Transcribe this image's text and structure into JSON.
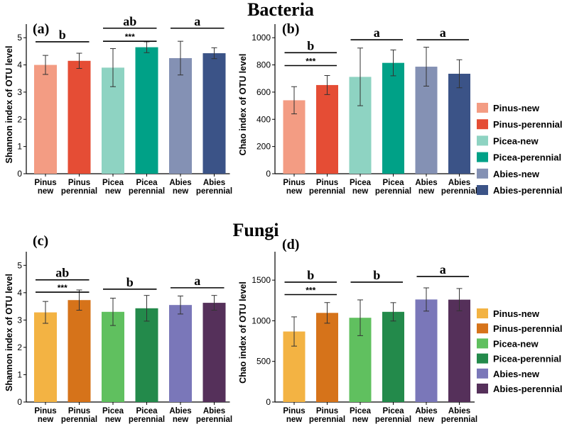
{
  "sections": [
    {
      "title": "Bacteria"
    },
    {
      "title": "Fungi"
    }
  ],
  "legends": [
    {
      "items": [
        {
          "label": "Pinus-new",
          "color": "#F39C83"
        },
        {
          "label": "Pinus-perennial",
          "color": "#E54D35"
        },
        {
          "label": "Picea-new",
          "color": "#8ED3C2"
        },
        {
          "label": "Picea-perennial",
          "color": "#00A187"
        },
        {
          "label": "Abies-new",
          "color": "#8491B4"
        },
        {
          "label": "Abies-perennial",
          "color": "#3B5387"
        }
      ]
    },
    {
      "items": [
        {
          "label": "Pinus-new",
          "color": "#F3B343"
        },
        {
          "label": "Pinus-perennial",
          "color": "#D6731A"
        },
        {
          "label": "Picea-new",
          "color": "#60C05F"
        },
        {
          "label": "Picea-perennial",
          "color": "#238A4B"
        },
        {
          "label": "Abies-new",
          "color": "#7A77B9"
        },
        {
          "label": "Abies-perennial",
          "color": "#55305A"
        }
      ]
    }
  ],
  "chart_data": [
    {
      "panel": "(a)",
      "type": "bar",
      "ylabel": "Shannon index of OTU level",
      "ylim": [
        0,
        5.5
      ],
      "yticks": [
        0,
        1,
        2,
        3,
        4,
        5
      ],
      "categories": [
        [
          "Pinus",
          "new"
        ],
        [
          "Pinus",
          "perennial"
        ],
        [
          "Picea",
          "new"
        ],
        [
          "Picea",
          "perennial"
        ],
        [
          "Abies",
          "new"
        ],
        [
          "Abies",
          "perennial"
        ]
      ],
      "values": [
        4.0,
        4.15,
        3.9,
        4.65,
        4.25,
        4.43
      ],
      "errors": [
        0.35,
        0.28,
        0.7,
        0.2,
        0.62,
        0.2
      ],
      "colors": [
        "#F39C83",
        "#E54D35",
        "#8ED3C2",
        "#00A187",
        "#8491B4",
        "#3B5387"
      ],
      "annotations": [
        {
          "text": "b",
          "bars": [
            0,
            1
          ],
          "y": 4.85
        },
        {
          "text": "ab",
          "bars": [
            2,
            3
          ],
          "y": 5.35
        },
        {
          "text": "a",
          "bars": [
            4,
            5
          ],
          "y": 5.35
        },
        {
          "text": "***",
          "bars": [
            2,
            3
          ],
          "y": 4.87
        }
      ]
    },
    {
      "panel": "(b)",
      "type": "bar",
      "ylabel": "Chao index of OTU level",
      "ylim": [
        0,
        1100
      ],
      "yticks": [
        0,
        200,
        400,
        600,
        800,
        1000
      ],
      "categories": [
        [
          "Pinus",
          "new"
        ],
        [
          "Pinus",
          "perennial"
        ],
        [
          "Picea",
          "new"
        ],
        [
          "Picea",
          "perennial"
        ],
        [
          "Abies",
          "new"
        ],
        [
          "Abies",
          "perennial"
        ]
      ],
      "values": [
        540,
        652,
        712,
        815,
        787,
        735
      ],
      "errors": [
        100,
        70,
        212,
        95,
        143,
        103
      ],
      "colors": [
        "#F39C83",
        "#E54D35",
        "#8ED3C2",
        "#00A187",
        "#8491B4",
        "#3B5387"
      ],
      "annotations": [
        {
          "text": "b",
          "bars": [
            0,
            1
          ],
          "y": 890
        },
        {
          "text": "a",
          "bars": [
            2,
            3
          ],
          "y": 985
        },
        {
          "text": "a",
          "bars": [
            4,
            5
          ],
          "y": 985
        },
        {
          "text": "***",
          "bars": [
            0,
            1
          ],
          "y": 795
        }
      ]
    },
    {
      "panel": "(c)",
      "type": "bar",
      "ylabel": "Shannon index of OTU level",
      "ylim": [
        0,
        5.5
      ],
      "yticks": [
        0,
        1,
        2,
        3,
        4,
        5
      ],
      "categories": [
        [
          "Pinus",
          "new"
        ],
        [
          "Pinus",
          "perennial"
        ],
        [
          "Picea",
          "new"
        ],
        [
          "Picea",
          "perennial"
        ],
        [
          "Abies",
          "new"
        ],
        [
          "Abies",
          "perennial"
        ]
      ],
      "values": [
        3.28,
        3.73,
        3.3,
        3.43,
        3.55,
        3.63
      ],
      "errors": [
        0.4,
        0.37,
        0.5,
        0.47,
        0.33,
        0.27
      ],
      "colors": [
        "#F3B343",
        "#D6731A",
        "#60C05F",
        "#238A4B",
        "#7A77B9",
        "#55305A"
      ],
      "annotations": [
        {
          "text": "ab",
          "bars": [
            0,
            1
          ],
          "y": 4.47
        },
        {
          "text": "b",
          "bars": [
            2,
            3
          ],
          "y": 4.13
        },
        {
          "text": "a",
          "bars": [
            4,
            5
          ],
          "y": 4.18
        },
        {
          "text": "***",
          "bars": [
            0,
            1
          ],
          "y": 4.02
        }
      ]
    },
    {
      "panel": "(d)",
      "type": "bar",
      "ylabel": "Chao index of OTU level",
      "ylim": [
        0,
        1850
      ],
      "yticks": [
        0,
        500,
        1000,
        1500
      ],
      "categories": [
        [
          "Pinus",
          "new"
        ],
        [
          "Pinus",
          "perennial"
        ],
        [
          "Picea",
          "new"
        ],
        [
          "Picea",
          "perennial"
        ],
        [
          "Abies",
          "new"
        ],
        [
          "Abies",
          "perennial"
        ]
      ],
      "values": [
        868,
        1097,
        1037,
        1110,
        1262,
        1260
      ],
      "errors": [
        180,
        127,
        220,
        113,
        143,
        137
      ],
      "colors": [
        "#F3B343",
        "#D6731A",
        "#60C05F",
        "#238A4B",
        "#7A77B9",
        "#55305A"
      ],
      "annotations": [
        {
          "text": "b",
          "bars": [
            0,
            1
          ],
          "y": 1475
        },
        {
          "text": "b",
          "bars": [
            2,
            3
          ],
          "y": 1475
        },
        {
          "text": "a",
          "bars": [
            4,
            5
          ],
          "y": 1545
        },
        {
          "text": "***",
          "bars": [
            0,
            1
          ],
          "y": 1322
        }
      ]
    }
  ]
}
